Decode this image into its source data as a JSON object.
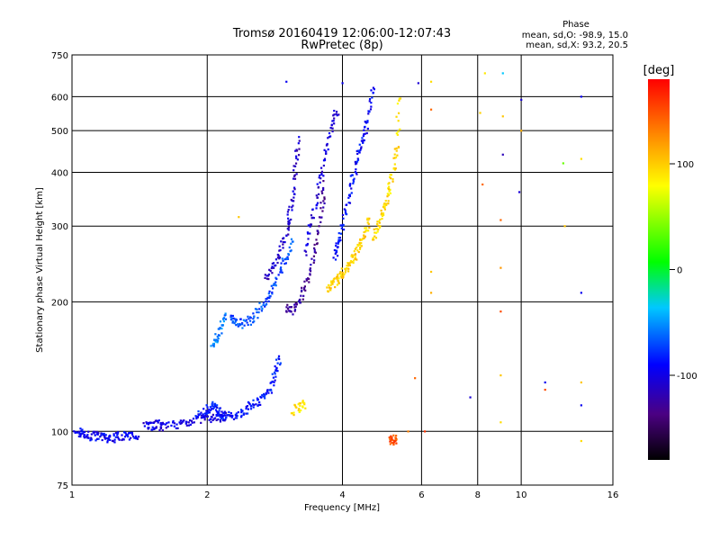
{
  "chart_data": {
    "type": "scatter",
    "title": "Tromsø 20160419 12:06:00-12:07:43",
    "subtitle": "RwPretec (8p)",
    "xlabel": "Frequency [MHz]",
    "ylabel": "Stationary phase Virtual Height [km]",
    "x_scale": "log",
    "y_scale": "log",
    "xlim": [
      1,
      16
    ],
    "ylim": [
      75,
      750
    ],
    "x_ticks": [
      1,
      2,
      4,
      6,
      8,
      10,
      16
    ],
    "x_tick_labels": [
      "1",
      "2",
      "4",
      "6",
      "8",
      "10",
      "16"
    ],
    "y_ticks": [
      75,
      100,
      200,
      300,
      400,
      500,
      600,
      750
    ],
    "y_tick_labels": [
      "75",
      "100",
      "200",
      "300",
      "400",
      "500",
      "600",
      "750"
    ],
    "grid": true,
    "stats": {
      "heading": "Phase",
      "line_o": "mean, sd,O: -98.9, 15.0",
      "line_x": "mean, sd,X:  93.2, 20.5"
    },
    "colorbar": {
      "label": "[deg]",
      "range": [
        -180,
        180
      ],
      "ticks": [
        100,
        0,
        -100
      ],
      "tick_labels": [
        "100",
        "0",
        "-100"
      ]
    },
    "traces": [
      {
        "x": [
          1.02,
          1.05,
          1.08,
          1.12,
          1.16,
          1.2,
          1.25,
          1.3,
          1.35,
          1.4
        ],
        "y": [
          98,
          100,
          97,
          98,
          97,
          96,
          97,
          98,
          97,
          99
        ],
        "phase": -100
      },
      {
        "x": [
          1.45,
          1.5,
          1.55,
          1.6,
          1.7,
          1.8,
          1.9,
          2.0,
          2.1,
          2.2
        ],
        "y": [
          104,
          103,
          104,
          102,
          104,
          105,
          107,
          108,
          107,
          109
        ],
        "phase": -105
      },
      {
        "x": [
          1.9,
          2.0,
          2.05,
          2.1,
          2.15,
          2.2,
          2.3,
          2.4,
          2.5,
          2.6,
          2.7,
          2.8,
          2.85,
          2.9
        ],
        "y": [
          108,
          112,
          115,
          113,
          110,
          108,
          109,
          111,
          115,
          118,
          122,
          128,
          140,
          148
        ],
        "phase": -90
      },
      {
        "x": [
          2.05,
          2.1,
          2.15,
          2.2
        ],
        "y": [
          158,
          165,
          175,
          188
        ],
        "phase": -60
      },
      {
        "x": [
          2.25,
          2.3,
          2.4,
          2.5,
          2.6,
          2.7,
          2.8,
          2.9,
          3.0,
          3.1
        ],
        "y": [
          185,
          180,
          178,
          182,
          190,
          200,
          215,
          235,
          255,
          280
        ],
        "phase": -75
      },
      {
        "x": [
          2.7,
          2.8,
          2.9,
          3.0,
          3.05,
          3.1,
          3.15,
          3.2
        ],
        "y": [
          225,
          240,
          260,
          290,
          320,
          360,
          420,
          480
        ],
        "phase": -115
      },
      {
        "x": [
          3.0,
          3.1,
          3.2,
          3.3,
          3.4,
          3.5,
          3.6,
          3.65
        ],
        "y": [
          195,
          190,
          200,
          215,
          240,
          280,
          330,
          380
        ],
        "phase": -130
      },
      {
        "x": [
          3.3,
          3.4,
          3.5,
          3.6,
          3.7,
          3.8,
          3.9
        ],
        "y": [
          260,
          300,
          350,
          400,
          460,
          520,
          560
        ],
        "phase": -110
      },
      {
        "x": [
          3.85,
          3.9,
          4.0,
          4.1,
          4.2,
          4.3,
          4.4,
          4.5,
          4.6,
          4.7
        ],
        "y": [
          255,
          270,
          300,
          340,
          380,
          420,
          460,
          500,
          560,
          630
        ],
        "phase": -95
      },
      {
        "x": [
          3.7,
          3.8,
          3.9,
          4.0,
          4.1,
          4.2,
          4.3,
          4.4,
          4.5,
          4.6
        ],
        "y": [
          215,
          220,
          226,
          232,
          240,
          250,
          262,
          275,
          292,
          310
        ],
        "phase": 95
      },
      {
        "x": [
          4.7,
          4.8,
          4.9,
          5.0,
          5.1,
          5.2,
          5.3,
          5.35
        ],
        "y": [
          280,
          300,
          320,
          340,
          370,
          410,
          470,
          620
        ],
        "phase": 90
      },
      {
        "x": [
          5.1,
          5.2,
          5.3
        ],
        "y": [
          96,
          95,
          97
        ],
        "phase": 150
      },
      {
        "x": [
          3.1,
          3.2,
          3.3
        ],
        "y": [
          112,
          114,
          116
        ],
        "phase": 85
      }
    ],
    "scatter_points": [
      {
        "x": 3.0,
        "y": 650,
        "phase": -100
      },
      {
        "x": 4.0,
        "y": 645,
        "phase": -100
      },
      {
        "x": 5.9,
        "y": 645,
        "phase": -110
      },
      {
        "x": 6.3,
        "y": 560,
        "phase": 140
      },
      {
        "x": 6.3,
        "y": 650,
        "phase": 90
      },
      {
        "x": 8.1,
        "y": 550,
        "phase": 95
      },
      {
        "x": 8.3,
        "y": 680,
        "phase": 85
      },
      {
        "x": 9.1,
        "y": 540,
        "phase": 100
      },
      {
        "x": 9.1,
        "y": 680,
        "phase": -40
      },
      {
        "x": 10.0,
        "y": 590,
        "phase": -110
      },
      {
        "x": 10.0,
        "y": 500,
        "phase": 110
      },
      {
        "x": 13.6,
        "y": 600,
        "phase": -100
      },
      {
        "x": 13.6,
        "y": 430,
        "phase": 90
      },
      {
        "x": 12.4,
        "y": 420,
        "phase": 30
      },
      {
        "x": 9.1,
        "y": 440,
        "phase": -120
      },
      {
        "x": 9.0,
        "y": 310,
        "phase": 140
      },
      {
        "x": 9.0,
        "y": 240,
        "phase": 120
      },
      {
        "x": 9.0,
        "y": 190,
        "phase": 150
      },
      {
        "x": 9.0,
        "y": 135,
        "phase": 100
      },
      {
        "x": 9.0,
        "y": 105,
        "phase": 90
      },
      {
        "x": 8.2,
        "y": 375,
        "phase": 140
      },
      {
        "x": 9.9,
        "y": 360,
        "phase": -110
      },
      {
        "x": 12.5,
        "y": 300,
        "phase": 100
      },
      {
        "x": 13.6,
        "y": 210,
        "phase": -100
      },
      {
        "x": 13.6,
        "y": 130,
        "phase": 100
      },
      {
        "x": 13.6,
        "y": 95,
        "phase": 90
      },
      {
        "x": 13.6,
        "y": 115,
        "phase": -100
      },
      {
        "x": 6.3,
        "y": 235,
        "phase": 100
      },
      {
        "x": 6.3,
        "y": 210,
        "phase": 110
      },
      {
        "x": 7.7,
        "y": 120,
        "phase": -110
      },
      {
        "x": 11.3,
        "y": 130,
        "phase": -100
      },
      {
        "x": 11.3,
        "y": 125,
        "phase": 150
      },
      {
        "x": 5.8,
        "y": 133,
        "phase": 140
      },
      {
        "x": 5.6,
        "y": 100,
        "phase": 130
      },
      {
        "x": 6.1,
        "y": 100,
        "phase": 160
      },
      {
        "x": 2.35,
        "y": 315,
        "phase": 100
      }
    ]
  }
}
